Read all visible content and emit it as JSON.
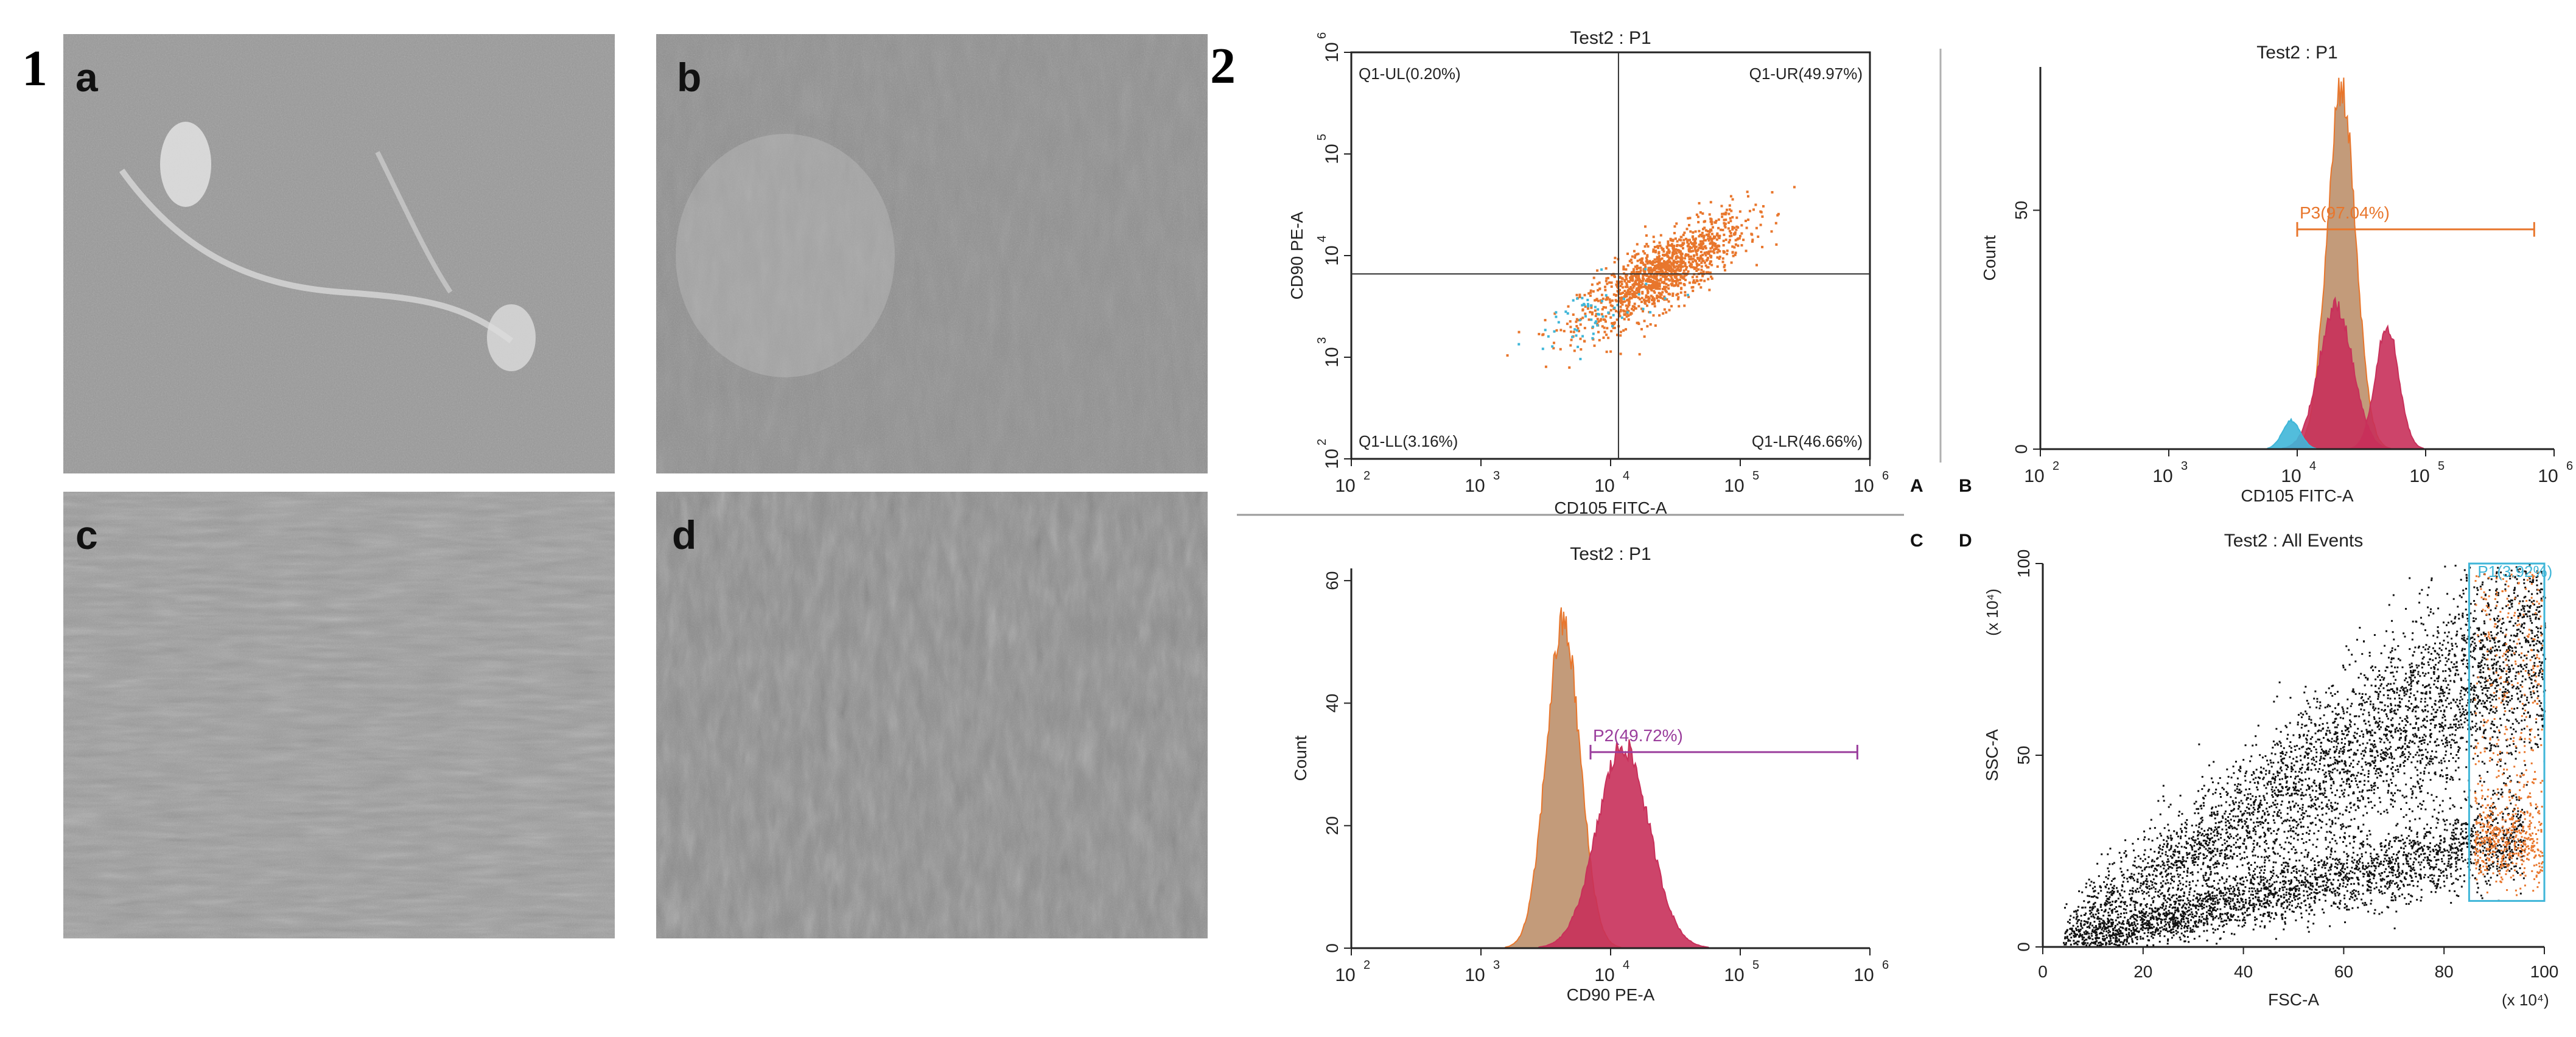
{
  "figure": {
    "label_1": "1",
    "label_2": "2",
    "photo_labels": [
      "a",
      "b",
      "c",
      "d"
    ],
    "panel_letters": [
      "A",
      "B",
      "C",
      "D"
    ]
  },
  "colors": {
    "orange": "#e8762c",
    "cyan": "#3fb6d8",
    "brown": "#b98a63",
    "magenta": "#c8305a",
    "purple": "#9a3d9c",
    "black": "#111111"
  },
  "chart_data": [
    {
      "id": "A",
      "type": "scatter",
      "title": "Test2 : P1",
      "xlabel": "CD105 FITC-A",
      "ylabel": "CD90 PE-A",
      "xscale": "log",
      "yscale": "log",
      "xlim": [
        100,
        1000000
      ],
      "ylim": [
        100,
        1000000
      ],
      "x_tick_exponents": [
        "2",
        "3",
        "4",
        "5",
        "6"
      ],
      "y_tick_exponents": [
        "2",
        "3",
        "4",
        "5",
        "6"
      ],
      "tick_base": "10",
      "quadrant_gate": {
        "x": 11500,
        "y": 6600
      },
      "quadrants": [
        {
          "name": "Q1-UL",
          "label": "Q1-UL(0.20%)",
          "percent": 0.2
        },
        {
          "name": "Q1-UR",
          "label": "Q1-UR(49.97%)",
          "percent": 49.97
        },
        {
          "name": "Q1-LL",
          "label": "Q1-LL(3.16%)",
          "percent": 3.16
        },
        {
          "name": "Q1-LR",
          "label": "Q1-LR(46.66%)",
          "percent": 46.66
        }
      ],
      "clusters": [
        {
          "color": "orange",
          "center": [
            25000,
            7000
          ],
          "spread_log": [
            0.32,
            0.28
          ],
          "correlation": 0.8,
          "approx_points": 1300
        },
        {
          "color": "cyan",
          "center": [
            7000,
            2500
          ],
          "spread_log": [
            0.25,
            0.2
          ],
          "correlation": 0.5,
          "approx_points": 60
        }
      ]
    },
    {
      "id": "B",
      "type": "histogram",
      "title": "Test2 : P1",
      "xlabel": "CD105 FITC-A",
      "ylabel": "Count",
      "xscale": "log",
      "xlim": [
        100,
        1000000
      ],
      "ylim": [
        0,
        80
      ],
      "x_tick_exponents": [
        "2",
        "3",
        "4",
        "5",
        "6"
      ],
      "tick_base": "10",
      "y_ticks": [
        "0",
        "50"
      ],
      "gate": {
        "label": "P3(97.04%)",
        "percent": 97.04,
        "from": 10000,
        "to": 700000,
        "level": 46
      },
      "peaks": [
        {
          "color": "brown",
          "center": 22000,
          "sd_log": 0.11,
          "height": 76
        },
        {
          "color": "magenta",
          "center": 20000,
          "sd_log": 0.13,
          "height": 30
        },
        {
          "color": "magenta",
          "center": 50000,
          "sd_log": 0.09,
          "height": 26
        },
        {
          "color": "cyan",
          "center": 9000,
          "sd_log": 0.07,
          "height": 6
        }
      ]
    },
    {
      "id": "C",
      "type": "histogram",
      "title": "Test2 : P1",
      "xlabel": "CD90 PE-A",
      "ylabel": "Count",
      "xscale": "log",
      "xlim": [
        100,
        1000000
      ],
      "ylim": [
        0,
        62
      ],
      "x_tick_exponents": [
        "2",
        "3",
        "4",
        "5",
        "6"
      ],
      "tick_base": "10",
      "y_ticks": [
        "0",
        "20",
        "40",
        "60"
      ],
      "gate": {
        "label": "P2(49.72%)",
        "percent": 49.72,
        "from": 7000,
        "to": 800000,
        "level": 32
      },
      "peaks": [
        {
          "color": "brown",
          "center": 4300,
          "sd_log": 0.13,
          "height": 53
        },
        {
          "color": "magenta",
          "center": 12500,
          "sd_log": 0.2,
          "height": 33
        }
      ]
    },
    {
      "id": "D",
      "type": "scatter",
      "title": "Test2 : All Events",
      "xlabel": "FSC-A",
      "ylabel": "SSC-A",
      "xunit": "(x 10⁴)",
      "yunit": "(x 10⁴)",
      "xlim": [
        0,
        100
      ],
      "ylim": [
        0,
        100
      ],
      "x_ticks": [
        "0",
        "20",
        "40",
        "60",
        "80",
        "100"
      ],
      "y_ticks": [
        "0",
        "50",
        "100"
      ],
      "gate": {
        "label": "P1(3.92%)",
        "percent": 3.92,
        "x": [
          85,
          100
        ],
        "y": [
          12,
          100
        ]
      },
      "populations": [
        {
          "color": "black",
          "description": "main diagonal band",
          "approx_points": 4200
        },
        {
          "color": "black",
          "description": "lower band",
          "approx_points": 2500
        },
        {
          "color": "orange",
          "description": "gated events",
          "approx_points": 700
        }
      ]
    }
  ]
}
